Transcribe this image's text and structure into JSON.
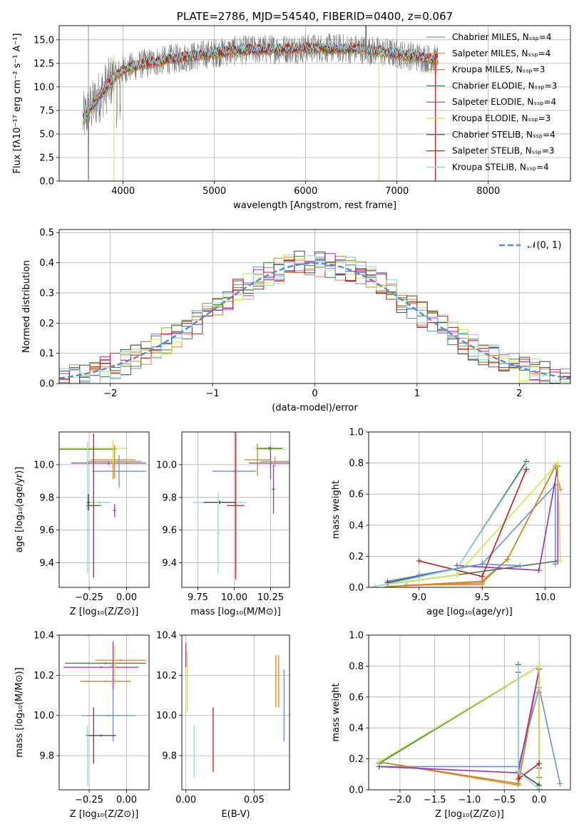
{
  "colors": {
    "chabrier_miles": "#6b8fd6",
    "salpeter_miles": "#e8823a",
    "kroupa_miles": "#c28a1a",
    "chabrier_elodie": "#3f7f4a",
    "salpeter_elodie": "#9b2fb3",
    "kroupa_elodie": "#c9e84a",
    "chabrier_stelib": "#444444",
    "salpeter_stelib": "#c41a1a",
    "kroupa_stelib": "#8fd6e0",
    "data_grey": "#7a7a7a",
    "gauss": "#5a8ad6",
    "grid": "#b0b0b0"
  },
  "chart_data": [
    {
      "id": "spectrum",
      "type": "line",
      "title": "PLATE=2786, MJD=54540, FIBERID=0400, z=0.067",
      "xlabel": "wavelength [Angstrom, rest frame]",
      "ylabel": "Flux [fλ10⁻¹⁷ erg cm⁻² s⁻¹ A⁻¹]",
      "xlim": [
        3300,
        8900
      ],
      "ylim": [
        0,
        16.5
      ],
      "xticks": [
        "4000",
        "5000",
        "6000",
        "7000",
        "8000"
      ],
      "yticks": [
        "0.0",
        "2.5",
        "5.0",
        "7.5",
        "10.0",
        "12.5",
        "15.0"
      ],
      "legend_position": "top-right",
      "legend": [
        "Chabrier MILES, Nₛₛₚ=4",
        "Salpeter MILES, Nₛₛₚ=4",
        "Kroupa MILES, Nₛₛₚ=3",
        "Chabrier ELODIE, Nₛₛₚ=3",
        "Salpeter ELODIE, Nₛₛₚ=4",
        "Kroupa ELODIE, Nₛₛₚ=3",
        "Chabrier STELIB, Nₛₛₚ=4",
        "Salpeter STELIB, Nₛₛₚ=3",
        "Kroupa STELIB, Nₛₛₚ=4"
      ],
      "continuum": {
        "x": [
          3560,
          3700,
          3900,
          4000,
          4200,
          4500,
          4800,
          5000,
          5300,
          5600,
          6000,
          6300,
          6600,
          7000,
          7300,
          7500
        ],
        "y": [
          6.5,
          8.5,
          11.0,
          11.8,
          12.4,
          12.9,
          13.3,
          13.6,
          13.9,
          14.0,
          14.1,
          14.1,
          14.0,
          13.5,
          13.1,
          12.8
        ]
      }
    },
    {
      "id": "residuals",
      "type": "bar",
      "xlabel": "(data-model)/error",
      "ylabel": "Normed distribution",
      "xlim": [
        -2.5,
        2.5
      ],
      "ylim": [
        0,
        0.51
      ],
      "xticks": [
        "−2",
        "−1",
        "0",
        "1",
        "2"
      ],
      "yticks": [
        "0.0",
        "0.1",
        "0.2",
        "0.3",
        "0.4",
        "0.5"
      ],
      "legend_position": "top-right",
      "legend": [
        "𝒩(0, 1)"
      ],
      "bin_width": 0.1,
      "gaussian": {
        "mu": 0,
        "sigma": 1
      }
    },
    {
      "id": "age_vs_z",
      "type": "scatter",
      "xlabel": "Z [log₁₀(Z/Z⊙)]",
      "ylabel": "age  [log₁₀(age/yr)]",
      "xlim": [
        -0.45,
        0.15
      ],
      "ylim": [
        9.25,
        10.2
      ],
      "xticks": [
        "−0.25",
        "0.00"
      ],
      "yticks": [
        "9.4",
        "9.6",
        "9.8",
        "10.0"
      ],
      "points": [
        {
          "x": -0.27,
          "y": 10.095,
          "xerr": 0.2,
          "yerr": 0.005,
          "c": "chabrier_elodie"
        },
        {
          "x": -0.22,
          "y": 10.1,
          "xerr": 0.22,
          "yerr": 0.005,
          "c": "kroupa_elodie"
        },
        {
          "x": -0.12,
          "y": 10.01,
          "xerr": 0.25,
          "yerr": 0.01,
          "c": "salpeter_elodie"
        },
        {
          "x": -0.08,
          "y": 10.02,
          "xerr": 0.18,
          "yerr": 0.1,
          "c": "salpeter_miles"
        },
        {
          "x": -0.09,
          "y": 10.03,
          "xerr": 0.15,
          "yerr": 0.12,
          "c": "kroupa_miles"
        },
        {
          "x": -0.05,
          "y": 9.96,
          "xerr": 0.18,
          "yerr": 0.1,
          "c": "chabrier_miles"
        },
        {
          "x": -0.08,
          "y": 9.72,
          "xerr": 0.01,
          "yerr": 0.04,
          "c": "salpeter_elodie"
        },
        {
          "x": -0.18,
          "y": 9.77,
          "xerr": 0.07,
          "yerr": 0.01,
          "c": "kroupa_stelib"
        },
        {
          "x": -0.22,
          "y": 9.75,
          "xerr": 0.05,
          "yerr": 0.44,
          "c": "salpeter_stelib"
        },
        {
          "x": -0.26,
          "y": 9.74,
          "xerr": 0.01,
          "yerr": 0.4,
          "c": "kroupa_stelib"
        },
        {
          "x": -0.255,
          "y": 9.77,
          "xerr": 0.01,
          "yerr": 0.05,
          "c": "chabrier_stelib"
        },
        {
          "x": -0.09,
          "y": 10.08,
          "xerr": 0.01,
          "yerr": 0.07,
          "c": "kroupa_elodie"
        }
      ]
    },
    {
      "id": "age_vs_mass",
      "type": "scatter",
      "xlabel": "mass [log₁₀(M/M⊙)]",
      "ylabel": "",
      "xlim": [
        9.64,
        10.38
      ],
      "ylim": [
        9.25,
        10.2
      ],
      "xticks": [
        "9.75",
        "10.00",
        "10.25"
      ],
      "yticks": [
        "9.4",
        "9.6",
        "9.8",
        "10.0"
      ],
      "points": [
        {
          "x": 10.26,
          "y": 10.095,
          "xerr": 0.1,
          "yerr": 0.005,
          "c": "kroupa_elodie"
        },
        {
          "x": 10.24,
          "y": 10.1,
          "xerr": 0.09,
          "yerr": 0.01,
          "c": "chabrier_elodie"
        },
        {
          "x": 10.25,
          "y": 10.01,
          "xerr": 0.15,
          "yerr": 0.1,
          "c": "salpeter_elodie"
        },
        {
          "x": 10.28,
          "y": 10.02,
          "xerr": 0.1,
          "yerr": 0.03,
          "c": "salpeter_miles"
        },
        {
          "x": 10.16,
          "y": 10.03,
          "xerr": 0.09,
          "yerr": 0.1,
          "c": "kroupa_miles"
        },
        {
          "x": 10.0,
          "y": 9.96,
          "xerr": 0.15,
          "yerr": 0.01,
          "c": "chabrier_miles"
        },
        {
          "x": 10.27,
          "y": 9.85,
          "xerr": 0.01,
          "yerr": 0.15,
          "c": "salpeter_elodie"
        },
        {
          "x": 9.9,
          "y": 9.77,
          "xerr": 0.18,
          "yerr": 0.01,
          "c": "kroupa_stelib"
        },
        {
          "x": 9.9,
          "y": 9.77,
          "xerr": 0.11,
          "yerr": 0.01,
          "c": "chabrier_stelib"
        },
        {
          "x": 10.01,
          "y": 9.75,
          "xerr": 0.06,
          "yerr": 0.45,
          "c": "salpeter_stelib"
        },
        {
          "x": 9.89,
          "y": 9.58,
          "xerr": 0.01,
          "yerr": 0.25,
          "c": "kroupa_stelib"
        }
      ]
    },
    {
      "id": "weight_vs_age",
      "type": "line",
      "xlabel": "age  [log₁₀(age/yr)]",
      "ylabel": "mass weight",
      "xlim": [
        8.6,
        10.2
      ],
      "ylim": [
        0,
        1.0
      ],
      "xticks": [
        "9.0",
        "9.5",
        "10.0"
      ],
      "yticks": [
        "0.0",
        "0.2",
        "0.4",
        "0.6",
        "0.8",
        "1.0"
      ],
      "series": [
        {
          "c": "chabrier_miles",
          "x": [
            8.75,
            9.5,
            10.08,
            10.08
          ],
          "y": [
            0.04,
            0.15,
            0.66,
            0.15
          ]
        },
        {
          "c": "salpeter_miles",
          "x": [
            8.75,
            9.5,
            9.7,
            10.08,
            10.12
          ],
          "y": [
            0.005,
            0.03,
            0.18,
            0.78,
            0.63
          ]
        },
        {
          "c": "kroupa_miles",
          "x": [
            8.75,
            9.5,
            9.7,
            10.08
          ],
          "y": [
            0.005,
            0.04,
            0.18,
            0.78
          ]
        },
        {
          "c": "chabrier_elodie",
          "x": [
            8.75,
            9.3,
            10.1
          ],
          "y": [
            0.02,
            0.08,
            0.17
          ]
        },
        {
          "c": "salpeter_elodie",
          "x": [
            9.3,
            9.95,
            10.1,
            10.1
          ],
          "y": [
            0.14,
            0.11,
            0.78,
            0.17
          ]
        },
        {
          "c": "kroupa_elodie",
          "x": [
            8.75,
            9.3,
            10.1,
            10.12
          ],
          "y": [
            0.02,
            0.08,
            0.8,
            0.17
          ]
        },
        {
          "c": "chabrier_stelib",
          "x": [
            8.75,
            9.3,
            9.85
          ],
          "y": [
            0.03,
            0.12,
            0.81
          ]
        },
        {
          "c": "salpeter_stelib",
          "x": [
            9.0,
            9.5,
            9.85
          ],
          "y": [
            0.17,
            0.07,
            0.76
          ]
        },
        {
          "c": "kroupa_stelib",
          "x": [
            8.65,
            9.3,
            9.85
          ],
          "y": [
            0.005,
            0.12,
            0.8
          ]
        },
        {
          "c": "chabrier_miles",
          "x": [
            9.0,
            9.5,
            9.8
          ],
          "y": [
            0.08,
            0.15,
            0.14
          ]
        },
        {
          "c": "salpeter_miles",
          "x": [
            8.9,
            9.5
          ],
          "y": [
            0.015,
            0.02
          ]
        }
      ]
    },
    {
      "id": "mass_vs_z",
      "type": "scatter",
      "xlabel": "Z [log₁₀(Z/Z⊙)]",
      "ylabel": "mass [log₁₀(M/M⊙)]",
      "xlim": [
        -0.45,
        0.15
      ],
      "ylim": [
        9.63,
        10.4
      ],
      "xticks": [
        "−0.25",
        "0.00"
      ],
      "yticks": [
        "9.8",
        "10.0",
        "10.2",
        "10.4"
      ],
      "points": [
        {
          "x": -0.14,
          "y": 10.26,
          "xerr": 0.27,
          "yerr": 0.005,
          "c": "chabrier_elodie"
        },
        {
          "x": -0.17,
          "y": 10.24,
          "xerr": 0.25,
          "yerr": 0.005,
          "c": "salpeter_elodie"
        },
        {
          "x": -0.04,
          "y": 10.275,
          "xerr": 0.17,
          "yerr": 0.005,
          "c": "salpeter_miles"
        },
        {
          "x": -0.09,
          "y": 10.25,
          "xerr": 0.01,
          "yerr": 0.12,
          "c": "salpeter_elodie"
        },
        {
          "x": -0.08,
          "y": 10.25,
          "xerr": 0.01,
          "yerr": 0.1,
          "c": "kroupa_elodie"
        },
        {
          "x": -0.14,
          "y": 10.17,
          "xerr": 0.17,
          "yerr": 0.005,
          "c": "kroupa_miles"
        },
        {
          "x": -0.12,
          "y": 10.0,
          "xerr": 0.18,
          "yerr": 0.005,
          "c": "chabrier_miles"
        },
        {
          "x": -0.09,
          "y": 10.0,
          "xerr": 0.01,
          "yerr": 0.13,
          "c": "chabrier_miles"
        },
        {
          "x": -0.22,
          "y": 9.9,
          "xerr": 0.05,
          "yerr": 0.14,
          "c": "salpeter_stelib"
        },
        {
          "x": -0.17,
          "y": 9.9,
          "xerr": 0.1,
          "yerr": 0.005,
          "c": "kroupa_stelib"
        },
        {
          "x": -0.17,
          "y": 9.9,
          "xerr": 0.1,
          "yerr": 0.005,
          "c": "chabrier_stelib"
        },
        {
          "x": -0.26,
          "y": 9.8,
          "xerr": 0.01,
          "yerr": 0.15,
          "c": "kroupa_stelib"
        }
      ]
    },
    {
      "id": "mass_vs_ebv",
      "type": "scatter",
      "xlabel": "E(B-V)",
      "ylabel": "",
      "xlim": [
        -0.003,
        0.076
      ],
      "ylim": [
        9.63,
        10.4
      ],
      "xticks": [
        "0.00",
        "0.05"
      ],
      "yticks": [
        "9.8",
        "10.0",
        "10.2",
        "10.4"
      ],
      "points": [
        {
          "x": 0.0,
          "y": 10.3,
          "xerr": 0.0,
          "yerr": 0.06,
          "c": "salpeter_elodie"
        },
        {
          "x": 0.001,
          "y": 10.17,
          "xerr": 0.0,
          "yerr": 0.15,
          "c": "kroupa_elodie"
        },
        {
          "x": 0.006,
          "y": 9.82,
          "xerr": 0.0,
          "yerr": 0.13,
          "c": "kroupa_stelib"
        },
        {
          "x": 0.02,
          "y": 9.88,
          "xerr": 0.0,
          "yerr": 0.16,
          "c": "salpeter_stelib"
        },
        {
          "x": 0.068,
          "y": 10.17,
          "xerr": 0.0,
          "yerr": 0.13,
          "c": "salpeter_miles"
        },
        {
          "x": 0.066,
          "y": 10.17,
          "xerr": 0.0,
          "yerr": 0.13,
          "c": "kroupa_miles"
        },
        {
          "x": 0.072,
          "y": 10.05,
          "xerr": 0.0,
          "yerr": 0.18,
          "c": "chabrier_miles"
        }
      ]
    },
    {
      "id": "weight_vs_z",
      "type": "line",
      "xlabel": "Z [log₁₀(Z/Z⊙)]",
      "ylabel": "mass weight",
      "xlim": [
        -2.45,
        0.45
      ],
      "ylim": [
        0,
        1.0
      ],
      "xticks": [
        "−2.0",
        "−1.5",
        "−1.0",
        "−0.5",
        "0.0"
      ],
      "yticks": [
        "0.0",
        "0.2",
        "0.4",
        "0.6",
        "0.8",
        "1.0"
      ],
      "series": [
        {
          "c": "chabrier_miles",
          "x": [
            -2.3,
            -0.3,
            0.0,
            0.3
          ],
          "y": [
            0.15,
            0.15,
            0.66,
            0.04
          ]
        },
        {
          "c": "salpeter_miles",
          "x": [
            -2.3,
            -0.3,
            0.0,
            0.0
          ],
          "y": [
            0.18,
            0.03,
            0.78,
            0.63
          ]
        },
        {
          "c": "kroupa_miles",
          "x": [
            -2.3,
            -0.3,
            0.0
          ],
          "y": [
            0.18,
            0.04,
            0.78
          ]
        },
        {
          "c": "chabrier_elodie",
          "x": [
            -2.3,
            0.0,
            0.0
          ],
          "y": [
            0.17,
            0.8,
            0.08
          ]
        },
        {
          "c": "salpeter_elodie",
          "x": [
            -2.3,
            -0.3,
            0.0,
            0.0
          ],
          "y": [
            0.15,
            0.11,
            0.78,
            0.14
          ]
        },
        {
          "c": "kroupa_elodie",
          "x": [
            -2.3,
            0.0,
            0.0
          ],
          "y": [
            0.18,
            0.8,
            0.02
          ]
        },
        {
          "c": "chabrier_stelib",
          "x": [
            -0.3,
            -0.3,
            0.0
          ],
          "y": [
            0.81,
            0.12,
            0.03
          ]
        },
        {
          "c": "salpeter_stelib",
          "x": [
            -0.3,
            -0.3,
            0.0
          ],
          "y": [
            0.76,
            0.07,
            0.17
          ]
        },
        {
          "c": "kroupa_stelib",
          "x": [
            -0.3,
            -0.3,
            0.0
          ],
          "y": [
            0.8,
            0.12,
            0.005
          ]
        }
      ]
    }
  ]
}
